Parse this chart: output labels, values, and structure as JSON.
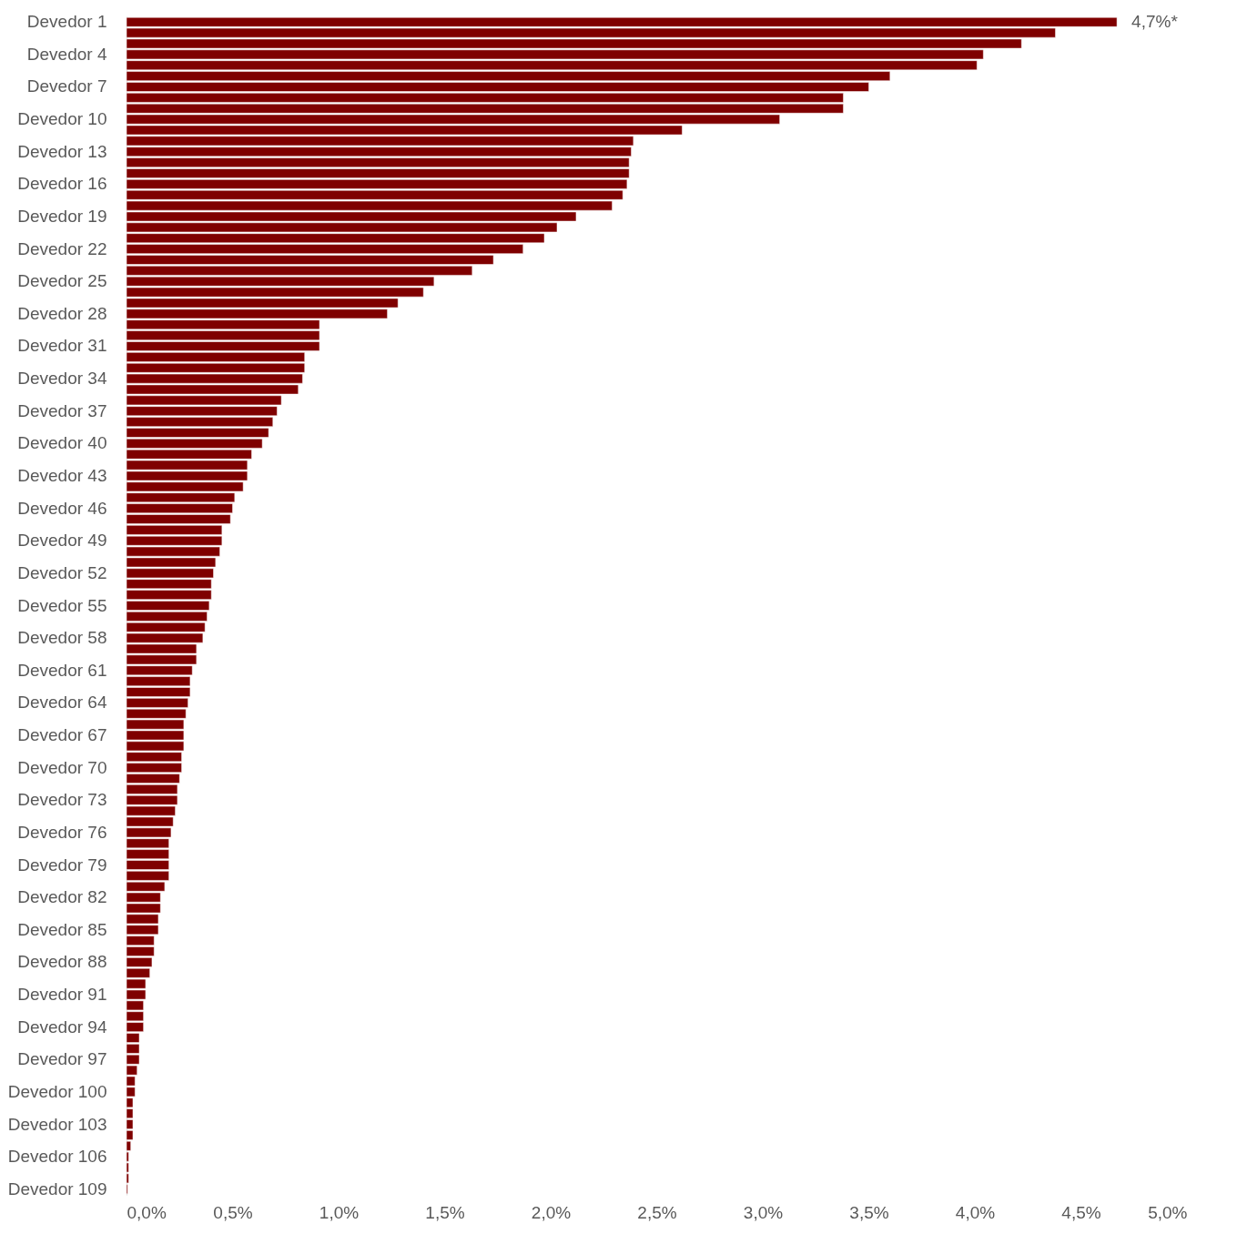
{
  "chart_data": {
    "type": "bar",
    "orientation": "horizontal",
    "color": "#7f0000",
    "categories": [
      "Devedor 1",
      null,
      null,
      "Devedor 4",
      null,
      null,
      "Devedor 7",
      null,
      null,
      "Devedor 10",
      null,
      null,
      "Devedor 13",
      null,
      null,
      "Devedor 16",
      null,
      null,
      "Devedor 19",
      null,
      null,
      "Devedor 22",
      null,
      null,
      "Devedor 25",
      null,
      null,
      "Devedor 28",
      null,
      null,
      "Devedor 31",
      null,
      null,
      "Devedor 34",
      null,
      null,
      "Devedor 37",
      null,
      null,
      "Devedor 40",
      null,
      null,
      "Devedor 43",
      null,
      null,
      "Devedor 46",
      null,
      null,
      "Devedor 49",
      null,
      null,
      "Devedor 52",
      null,
      null,
      "Devedor 55",
      null,
      null,
      "Devedor 58",
      null,
      null,
      "Devedor 61",
      null,
      null,
      "Devedor 64",
      null,
      null,
      "Devedor 67",
      null,
      null,
      "Devedor 70",
      null,
      null,
      "Devedor 73",
      null,
      null,
      "Devedor 76",
      null,
      null,
      "Devedor 79",
      null,
      null,
      "Devedor 82",
      null,
      null,
      "Devedor 85",
      null,
      null,
      "Devedor 88",
      null,
      null,
      "Devedor 91",
      null,
      null,
      "Devedor 94",
      null,
      null,
      "Devedor 97",
      null,
      null,
      "Devedor 100",
      null,
      null,
      "Devedor 103",
      null,
      null,
      "Devedor 106",
      null,
      null,
      "Devedor 109"
    ],
    "values": [
      4.67,
      4.38,
      4.22,
      4.04,
      4.01,
      3.6,
      3.5,
      3.38,
      3.38,
      3.08,
      2.62,
      2.39,
      2.38,
      2.37,
      2.37,
      2.36,
      2.34,
      2.29,
      2.12,
      2.03,
      1.97,
      1.87,
      1.73,
      1.63,
      1.45,
      1.4,
      1.28,
      1.23,
      0.91,
      0.91,
      0.91,
      0.84,
      0.84,
      0.83,
      0.81,
      0.73,
      0.71,
      0.69,
      0.67,
      0.64,
      0.59,
      0.57,
      0.57,
      0.55,
      0.51,
      0.5,
      0.49,
      0.45,
      0.45,
      0.44,
      0.42,
      0.41,
      0.4,
      0.4,
      0.39,
      0.38,
      0.37,
      0.36,
      0.33,
      0.33,
      0.31,
      0.3,
      0.3,
      0.29,
      0.28,
      0.27,
      0.27,
      0.27,
      0.26,
      0.26,
      0.25,
      0.24,
      0.24,
      0.23,
      0.22,
      0.21,
      0.2,
      0.2,
      0.2,
      0.2,
      0.18,
      0.16,
      0.16,
      0.15,
      0.15,
      0.13,
      0.13,
      0.12,
      0.11,
      0.09,
      0.09,
      0.08,
      0.08,
      0.08,
      0.06,
      0.06,
      0.06,
      0.05,
      0.04,
      0.04,
      0.03,
      0.03,
      0.03,
      0.03,
      0.02,
      0.01,
      0.01,
      0.01,
      0.005
    ],
    "value_labels": [
      "4,7%*",
      null,
      null,
      null,
      null,
      null,
      null,
      null,
      null,
      null,
      null,
      null,
      null,
      null,
      null,
      null,
      null,
      null,
      null,
      null,
      null,
      null,
      null,
      null,
      null,
      null,
      null,
      null,
      null,
      null,
      null,
      null,
      null,
      null,
      null,
      null,
      null,
      null,
      null,
      null,
      null,
      null,
      null,
      null,
      null,
      null,
      null,
      null,
      null,
      null,
      null,
      null,
      null,
      null,
      null,
      null,
      null,
      null,
      null,
      null,
      null,
      null,
      null,
      null,
      null,
      null,
      null,
      null,
      null,
      null,
      null,
      null,
      null,
      null,
      null,
      null,
      null,
      null,
      null,
      null,
      null,
      null,
      null,
      null,
      null,
      null,
      null,
      null,
      null,
      null,
      null,
      null,
      null,
      null,
      null,
      null,
      null,
      null,
      null,
      null,
      null,
      null,
      null,
      null,
      null,
      null,
      null,
      null,
      null
    ],
    "xlim": [
      0,
      5
    ],
    "xticks": [
      {
        "value": 0,
        "label": "0,0%"
      },
      {
        "value": 0.5,
        "label": "0,5%"
      },
      {
        "value": 1,
        "label": "1,0%"
      },
      {
        "value": 1.5,
        "label": "1,5%"
      },
      {
        "value": 2,
        "label": "2,0%"
      },
      {
        "value": 2.5,
        "label": "2,5%"
      },
      {
        "value": 3,
        "label": "3,0%"
      },
      {
        "value": 3.5,
        "label": "3,5%"
      },
      {
        "value": 4,
        "label": "4,0%"
      },
      {
        "value": 4.5,
        "label": "4,5%"
      },
      {
        "value": 5,
        "label": "5,0%"
      }
    ]
  }
}
